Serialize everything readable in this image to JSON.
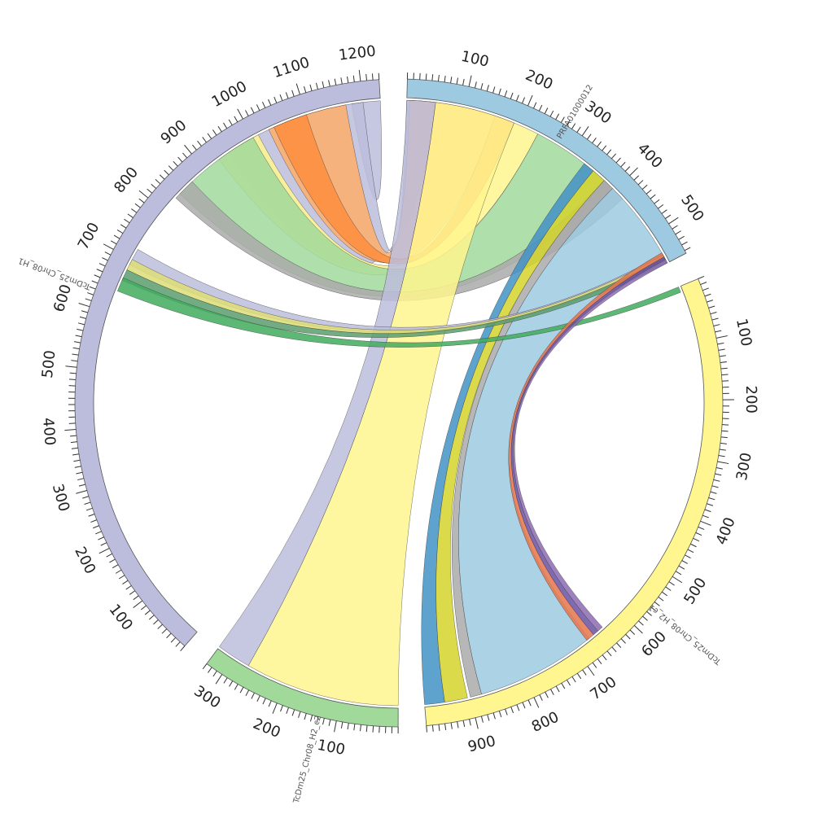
{
  "chart_data": {
    "type": "chord",
    "segments": [
      {
        "id": "PRFA",
        "name": "PRFA01000012",
        "length": 555,
        "color": "#9ecae1",
        "tick_labels": [
          100,
          200,
          300,
          400,
          500
        ]
      },
      {
        "id": "H2c1",
        "name": "TcDm25_Chr08_H2_c1",
        "length": 980,
        "color": "#fff68f",
        "tick_labels": [
          100,
          200,
          300,
          400,
          500,
          600,
          700,
          800,
          900
        ]
      },
      {
        "id": "H2c2",
        "name": "TcDm25_Chr08_H2_c2",
        "length": 330,
        "color": "#a1d99b",
        "tick_labels": [
          100,
          200,
          300
        ]
      },
      {
        "id": "H1",
        "name": "TcDm25_Chr08_H1",
        "length": 1230,
        "color": "#bcbddc",
        "tick_labels": [
          100,
          200,
          300,
          400,
          500,
          600,
          700,
          800,
          900,
          1000,
          1100,
          1200
        ]
      }
    ],
    "links": [
      {
        "a": [
          "H1",
          1180,
          1230
        ],
        "b": [
          "H1",
          1180,
          1230
        ],
        "color": "#bcbddc",
        "self": true
      },
      {
        "a": [
          "PRFA",
          0,
          50
        ],
        "b": [
          "H1",
          950,
          1200
        ],
        "color": "#bcbddc"
      },
      {
        "a": [
          "PRFA",
          5,
          155
        ],
        "b": [
          "H1",
          1030,
          1170
        ],
        "color": "#fdae6b"
      },
      {
        "a": [
          "PRFA",
          155,
          190
        ],
        "b": [
          "H1",
          1040,
          1100
        ],
        "color": "#fd8d3c"
      },
      {
        "a": [
          "PRFA",
          190,
          235
        ],
        "b": [
          "H1",
          930,
          1010
        ],
        "color": "#fff68f"
      },
      {
        "a": [
          "PRFA",
          235,
          390
        ],
        "b": [
          "H1",
          840,
          1000
        ],
        "color": "#a1d99b"
      },
      {
        "a": [
          "PRFA",
          375,
          420
        ],
        "b": [
          "H1",
          830,
          870
        ],
        "color": "#aaaaaa"
      },
      {
        "a": [
          "PRFA",
          0,
          50
        ],
        "b": [
          "H2c2",
          270,
          330
        ],
        "color": "#bcbddc"
      },
      {
        "a": [
          "PRFA",
          50,
          190
        ],
        "b": [
          "H2c2",
          0,
          270
        ],
        "color": "#fff68f"
      },
      {
        "a": [
          "PRFA",
          330,
          350
        ],
        "b": [
          "H2c1",
          945,
          980
        ],
        "color": "#4292c6"
      },
      {
        "a": [
          "PRFA",
          350,
          375
        ],
        "b": [
          "H2c1",
          905,
          945
        ],
        "color": "#d4d42c"
      },
      {
        "a": [
          "PRFA",
          375,
          395
        ],
        "b": [
          "H2c1",
          880,
          900
        ],
        "color": "#aaaaaa"
      },
      {
        "a": [
          "PRFA",
          395,
          540
        ],
        "b": [
          "H2c1",
          670,
          880
        ],
        "color": "#9ecae1"
      },
      {
        "a": [
          "H1",
          690,
          720
        ],
        "b": [
          "PRFA",
          538,
          545
        ],
        "color": "#bcbddc"
      },
      {
        "a": [
          "H1",
          680,
          700
        ],
        "b": [
          "PRFA",
          540,
          548
        ],
        "color": "#dddd77"
      },
      {
        "a": [
          "H1",
          660,
          680
        ],
        "b": [
          "PRFA",
          545,
          555
        ],
        "color": "#5a9e6f"
      },
      {
        "a": [
          "H1",
          640,
          665
        ],
        "b": [
          "H2c1",
          0,
          10
        ],
        "color": "#41ab5d"
      },
      {
        "a": [
          "PRFA",
          535,
          545
        ],
        "b": [
          "H2c1",
          660,
          675
        ],
        "color": "#e6744b"
      },
      {
        "a": [
          "PRFA",
          543,
          550
        ],
        "b": [
          "H2c1",
          650,
          660
        ],
        "color": "#6a51a3"
      },
      {
        "a": [
          "PRFA",
          548,
          555
        ],
        "b": [
          "H2c1",
          640,
          650
        ],
        "color": "#8c6bb1"
      }
    ]
  }
}
